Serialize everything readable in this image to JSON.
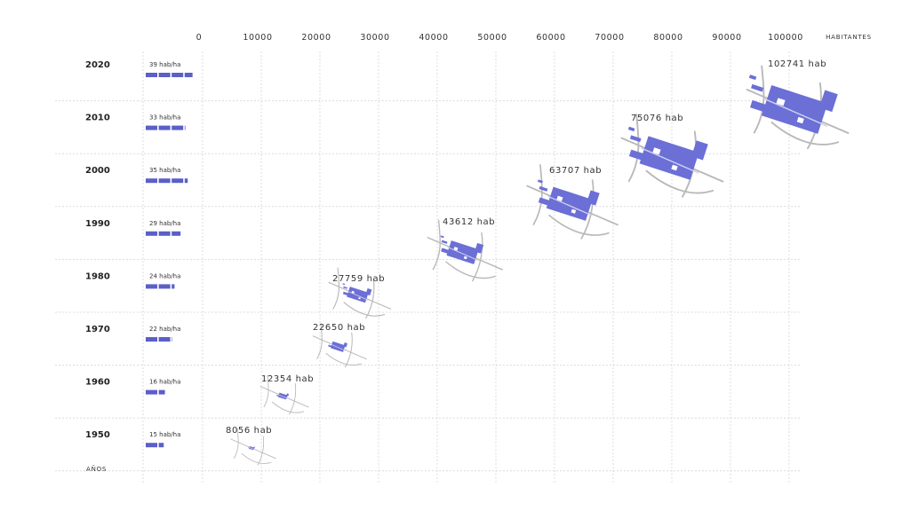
{
  "chart_data": {
    "type": "scatter",
    "xlabel": "HABITANTES",
    "ylabel": "AÑOS",
    "x_ticks": [
      0,
      10000,
      20000,
      30000,
      40000,
      50000,
      60000,
      70000,
      80000,
      90000,
      100000
    ],
    "xlim": [
      0,
      100000
    ],
    "years": [
      2020,
      2010,
      2000,
      1990,
      1980,
      1970,
      1960,
      1950
    ],
    "density_unit": "hab/ha",
    "density_values": [
      39,
      33,
      35,
      29,
      24,
      22,
      16,
      15
    ],
    "density_labels": [
      "39 hab/ha",
      "33 hab/ha",
      "35 hab/ha",
      "29 hab/ha",
      "24 hab/ha",
      "22 hab/ha",
      "16 hab/ha",
      "15 hab/ha"
    ],
    "population_values": [
      102741,
      75076,
      63707,
      43612,
      27759,
      22650,
      12354,
      8056
    ],
    "population_labels": [
      "102741 hab",
      "75076 hab",
      "63707 hab",
      "43612 hab",
      "27759 hab",
      "22650 hab",
      "12354 hab",
      "8056 hab"
    ],
    "grid": true,
    "colors": {
      "urban_area": "#6b6fd6",
      "density_bar": "#5b5fc7",
      "roads": "#b9b9b9",
      "grid": "#dcdcdc"
    }
  }
}
